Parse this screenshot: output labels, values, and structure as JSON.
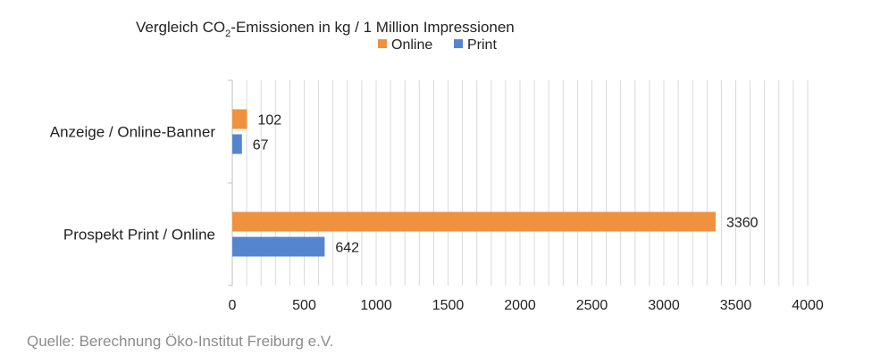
{
  "title": {
    "prefix": "Vergleich CO",
    "subscript": "2",
    "suffix": "-Emissionen in kg / 1 Million Impressionen"
  },
  "source": "Quelle: Berechnung Öko-Institut Freiburg e.V.",
  "colors": {
    "online": "#F0913F",
    "print": "#5585CF",
    "grid": "#d9d9d9",
    "axis": "#bfbfbf"
  },
  "chart_data": {
    "type": "bar",
    "orientation": "horizontal",
    "title": "Vergleich CO2-Emissionen in kg / 1 Million Impressionen",
    "categories": [
      "Anzeige / Online-Banner",
      "Prospekt Print / Online"
    ],
    "series": [
      {
        "name": "Online",
        "color": "#F0913F",
        "values": [
          102,
          3360
        ]
      },
      {
        "name": "Print",
        "color": "#5585CF",
        "values": [
          67,
          642
        ]
      }
    ],
    "xlim": [
      0,
      4000
    ],
    "major_ticks": [
      0,
      500,
      1000,
      1500,
      2000,
      2500,
      3000,
      3500,
      4000
    ],
    "minor_gridlines": true,
    "legend_position": "top",
    "data_labels": true
  }
}
